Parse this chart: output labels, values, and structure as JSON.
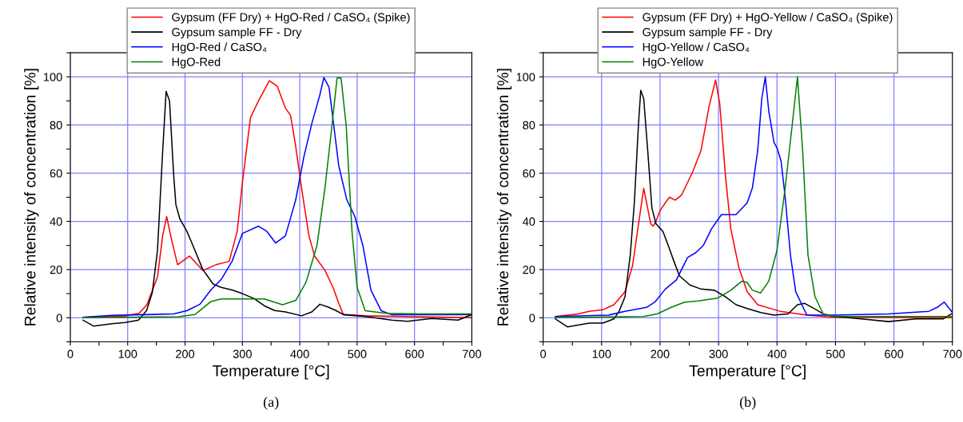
{
  "chart_data": [
    {
      "type": "line",
      "xlabel": "Temperature [°C]",
      "ylabel": "Relative intensity of concentration [%]",
      "annotations": [
        "(a)"
      ],
      "xlim": [
        0,
        700
      ],
      "ylim": [
        -10,
        110
      ],
      "xticks": [
        0,
        {
          "value": 50,
          "label": null
        },
        100,
        {
          "value": 150,
          "label": null
        },
        200,
        {
          "value": 250,
          "label": null
        },
        300,
        {
          "value": 350,
          "label": null
        },
        400,
        {
          "value": 450,
          "label": null
        },
        500,
        {
          "value": 550,
          "label": null
        },
        600,
        {
          "value": 650,
          "label": null
        },
        700
      ],
      "yticks": [
        {
          "value": -10,
          "label": null
        },
        0,
        {
          "value": 10,
          "label": null
        },
        20,
        {
          "value": 30,
          "label": null
        },
        40,
        {
          "value": 50,
          "label": null
        },
        60,
        {
          "value": 70,
          "label": null
        },
        80,
        {
          "value": 90,
          "label": null
        },
        100,
        {
          "value": 110,
          "label": null
        }
      ],
      "grid": true,
      "legend": "top",
      "marker": "none",
      "line_style": "solid",
      "series": [
        {
          "name": "Gypsum (FF Dry) + HgO-Red / CaSO₄ (Spike)",
          "color": "#ff0000",
          "x": [
            22,
            96,
            120,
            134,
            152,
            161,
            168,
            175,
            187,
            208,
            231,
            254,
            277,
            291,
            300,
            314,
            328,
            347,
            361,
            375,
            384,
            393,
            403,
            416,
            426,
            444,
            458,
            468,
            476,
            514,
            700
          ],
          "values": [
            0.2,
            0.8,
            1.8,
            5.6,
            17,
            34,
            42,
            34,
            22,
            25.6,
            19.6,
            22,
            23.4,
            36,
            56,
            83,
            90,
            98.4,
            96,
            87,
            84,
            71,
            54,
            34,
            25.6,
            19.6,
            12.6,
            6,
            1.3,
            0.8,
            0
          ]
        },
        {
          "name": "Gypsum sample FF - Dry",
          "color": "#000000",
          "x": [
            22,
            41,
            73,
            96,
            119,
            133,
            143,
            152,
            161,
            167,
            173,
            180,
            184,
            191,
            203,
            212,
            231,
            249,
            263,
            282,
            300,
            320,
            338,
            356,
            375,
            403,
            421,
            435,
            449,
            463,
            476,
            514,
            560,
            588,
            630,
            676,
            700
          ],
          "values": [
            -1,
            -3.5,
            -2.5,
            -2,
            -1,
            3,
            10.5,
            28,
            69,
            94,
            90,
            60,
            47,
            41,
            36,
            31,
            20,
            14,
            12.6,
            11.5,
            10,
            8,
            5,
            3,
            2.4,
            0.8,
            2.4,
            5.6,
            4.5,
            3,
            1.3,
            0.5,
            -1,
            -1.5,
            -0.3,
            -1,
            1.3
          ]
        },
        {
          "name": "HgO-Red / CaSO₄",
          "color": "#0000ff",
          "x": [
            22,
            73,
            133,
            180,
            203,
            226,
            245,
            263,
            282,
            300,
            328,
            342,
            358,
            375,
            393,
            407,
            421,
            435,
            442,
            451,
            468,
            482,
            496,
            510,
            524,
            542,
            560,
            700
          ],
          "values": [
            0.2,
            1,
            1.3,
            1.6,
            2.9,
            5.6,
            11.5,
            15.9,
            23.4,
            35,
            38,
            36,
            31,
            34,
            49,
            66.6,
            80.6,
            92.5,
            99.7,
            95.7,
            63,
            49,
            42,
            30,
            11.5,
            2.9,
            1.3,
            1.3
          ]
        },
        {
          "name": "HgO-Red",
          "color": "#008000",
          "x": [
            22,
            189,
            217,
            245,
            263,
            338,
            370,
            393,
            411,
            430,
            444,
            456,
            465,
            472,
            481,
            491,
            500,
            514,
            551,
            607,
            700
          ],
          "values": [
            0,
            0.4,
            1.3,
            6.7,
            7.8,
            7.8,
            5.4,
            7.2,
            14.8,
            30,
            54,
            79.5,
            99.5,
            99.5,
            79.5,
            36,
            12.6,
            2.9,
            1.8,
            1.6,
            1.6
          ]
        }
      ]
    },
    {
      "type": "line",
      "xlabel": "Temperature [°C]",
      "ylabel": "Relative intensity of concentration [%]",
      "annotations": [
        "(b)"
      ],
      "xlim": [
        0,
        700
      ],
      "ylim": [
        -10,
        110
      ],
      "xticks": [
        0,
        {
          "value": 50,
          "label": null
        },
        100,
        {
          "value": 150,
          "label": null
        },
        200,
        {
          "value": 250,
          "label": null
        },
        300,
        {
          "value": 350,
          "label": null
        },
        400,
        {
          "value": 450,
          "label": null
        },
        500,
        {
          "value": 550,
          "label": null
        },
        600,
        {
          "value": 650,
          "label": null
        },
        700
      ],
      "yticks": [
        {
          "value": -10,
          "label": null
        },
        0,
        {
          "value": 10,
          "label": null
        },
        20,
        {
          "value": 30,
          "label": null
        },
        40,
        {
          "value": 50,
          "label": null
        },
        60,
        {
          "value": 70,
          "label": null
        },
        80,
        {
          "value": 90,
          "label": null
        },
        100,
        {
          "value": 110,
          "label": null
        }
      ],
      "grid": true,
      "legend": "top",
      "marker": "none",
      "line_style": "solid",
      "series": [
        {
          "name": "Gypsum (FF Dry) + HgO-Yellow / CaSO₄ (Spike)",
          "color": "#ff0000",
          "x": [
            21,
            60,
            79,
            102,
            121,
            140,
            153,
            165,
            172,
            177,
            184,
            188,
            193,
            200,
            209,
            216,
            226,
            237,
            256,
            270,
            284,
            295,
            302,
            312,
            321,
            335,
            349,
            367,
            405,
            451,
            498,
            698
          ],
          "values": [
            0.5,
            1.6,
            2.7,
            3.3,
            5.4,
            10.8,
            21.7,
            42,
            53.7,
            47.7,
            39,
            38,
            40,
            44.5,
            47.7,
            50,
            48.8,
            51,
            60.7,
            69.4,
            87.9,
            98.7,
            89,
            58.6,
            36.9,
            20.6,
            10.8,
            5.4,
            2.7,
            1.1,
            0.2,
            0
          ]
        },
        {
          "name": "Gypsum sample FF - Dry",
          "color": "#000000",
          "x": [
            21,
            42,
            79,
            102,
            121,
            130,
            140,
            149,
            156,
            163,
            167,
            172,
            179,
            186,
            193,
            205,
            214,
            223,
            233,
            251,
            270,
            293,
            312,
            330,
            349,
            372,
            395,
            419,
            435,
            447,
            460,
            479,
            498,
            544,
            591,
            637,
            684,
            698
          ],
          "values": [
            -0.5,
            -3.8,
            -2.2,
            -2.2,
            -0.5,
            2.7,
            8.7,
            26,
            47.7,
            80,
            94.4,
            91,
            69,
            45.6,
            39,
            35.8,
            30,
            23.9,
            17.4,
            13.6,
            11.9,
            11.4,
            8.7,
            5.4,
            3.8,
            2.2,
            1.1,
            1.6,
            5.4,
            6,
            4.3,
            1.6,
            0.5,
            -0.5,
            -1.6,
            -0.5,
            -0.5,
            1.6
          ]
        },
        {
          "name": "HgO-Yellow / CaSO₄",
          "color": "#0000ff",
          "x": [
            21,
            112,
            140,
            177,
            191,
            209,
            228,
            247,
            261,
            274,
            288,
            305,
            330,
            349,
            358,
            367,
            374,
            380,
            386,
            395,
            400,
            407,
            414,
            423,
            432,
            451,
            498,
            591,
            660,
            674,
            686,
            700
          ],
          "values": [
            0.5,
            1.1,
            2.7,
            4.3,
            6.5,
            11.9,
            15.7,
            25,
            27,
            30,
            36.9,
            42.8,
            42.8,
            47.7,
            54,
            69.4,
            91,
            100,
            85.7,
            72.7,
            70.5,
            65,
            49.9,
            26,
            10.8,
            1.1,
            1.1,
            1.6,
            2.7,
            4.3,
            6.5,
            2.2
          ]
        },
        {
          "name": "HgO-Yellow",
          "color": "#008000",
          "x": [
            21,
            172,
            195,
            219,
            242,
            265,
            298,
            321,
            340,
            349,
            358,
            372,
            386,
            400,
            414,
            426,
            435,
            444,
            453,
            465,
            479,
            498,
            698
          ],
          "values": [
            0,
            0.5,
            1.6,
            4.3,
            6.5,
            7,
            8.1,
            11.4,
            15.2,
            14.6,
            11.4,
            10.3,
            15.2,
            28,
            54,
            80,
            100,
            69,
            26,
            8.7,
            1.6,
            0.5,
            0.5
          ]
        }
      ]
    }
  ]
}
